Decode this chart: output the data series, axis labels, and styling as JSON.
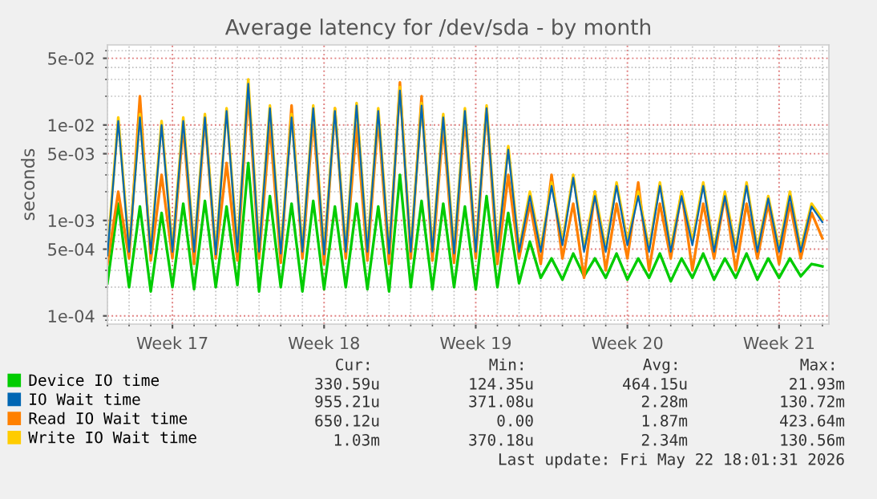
{
  "chart_data": {
    "type": "line",
    "title": "Average latency for /dev/sda - by month",
    "ylabel": "seconds",
    "categories": [
      null,
      null,
      null,
      null,
      null,
      null,
      "Week 17",
      null,
      null,
      null,
      null,
      null,
      null,
      null,
      null,
      null,
      null,
      null,
      null,
      null,
      "Week 18",
      null,
      null,
      null,
      null,
      null,
      null,
      null,
      null,
      null,
      null,
      null,
      null,
      null,
      "Week 19",
      null,
      null,
      null,
      null,
      null,
      null,
      null,
      null,
      null,
      null,
      null,
      null,
      null,
      "Week 20",
      null,
      null,
      null,
      null,
      null,
      null,
      null,
      null,
      null,
      null,
      null,
      null,
      null,
      "Week 21",
      null,
      null,
      null,
      null
    ],
    "series": [
      {
        "name": "Device IO time",
        "color": "#00cc00",
        "values": [
          0.00022,
          0.0015,
          0.0002,
          0.0014,
          0.00018,
          0.0012,
          0.0002,
          0.0015,
          0.00019,
          0.0016,
          0.0002,
          0.0014,
          0.00021,
          0.004,
          0.00018,
          0.0018,
          0.0002,
          0.0015,
          0.00018,
          0.0016,
          0.00019,
          0.0014,
          0.0002,
          0.0015,
          0.00019,
          0.0014,
          0.00018,
          0.003,
          0.0002,
          0.0016,
          0.00019,
          0.0015,
          0.0002,
          0.0014,
          0.00019,
          0.0018,
          0.0002,
          0.0012,
          0.00022,
          0.0006,
          0.00025,
          0.0004,
          0.00024,
          0.00045,
          0.00026,
          0.0004,
          0.00025,
          0.00045,
          0.00024,
          0.0004,
          0.00025,
          0.00045,
          0.00023,
          0.0004,
          0.00025,
          0.00045,
          0.00024,
          0.0004,
          0.00025,
          0.00045,
          0.00024,
          0.0004,
          0.00025,
          0.0004,
          0.00026,
          0.00035,
          0.00033
        ]
      },
      {
        "name": "IO Wait time",
        "color": "#0066b3",
        "values": [
          0.00043,
          0.011,
          0.00047,
          0.012,
          0.00045,
          0.01,
          0.00047,
          0.011,
          0.00047,
          0.012,
          0.00044,
          0.014,
          0.00047,
          0.027,
          0.00047,
          0.015,
          0.00045,
          0.012,
          0.00047,
          0.015,
          0.00044,
          0.014,
          0.00047,
          0.016,
          0.00047,
          0.014,
          0.00045,
          0.023,
          0.00047,
          0.016,
          0.00047,
          0.012,
          0.00045,
          0.014,
          0.00047,
          0.015,
          0.00047,
          0.0055,
          0.00047,
          0.0018,
          0.00047,
          0.0023,
          0.00055,
          0.0028,
          0.00047,
          0.0018,
          0.00047,
          0.0023,
          0.00055,
          0.0018,
          0.00047,
          0.0023,
          0.00047,
          0.0018,
          0.00055,
          0.0023,
          0.00047,
          0.0018,
          0.00047,
          0.0023,
          0.00047,
          0.0017,
          0.00047,
          0.0018,
          0.00047,
          0.0014,
          0.00096
        ]
      },
      {
        "name": "Read IO Wait time",
        "color": "#ff8000",
        "values": [
          0.00035,
          0.002,
          0.0004,
          0.02,
          0.00038,
          0.003,
          0.0004,
          0.01,
          0.00035,
          0.012,
          0.0004,
          0.004,
          0.00038,
          0.022,
          0.0004,
          0.01,
          0.00036,
          0.016,
          0.0004,
          0.012,
          0.00035,
          0.015,
          0.0004,
          0.01,
          0.00038,
          0.012,
          0.00035,
          0.028,
          0.0004,
          0.02,
          0.00038,
          0.01,
          0.00036,
          0.012,
          0.0004,
          0.015,
          0.00035,
          0.003,
          0.0004,
          0.0015,
          0.00035,
          0.003,
          0.0004,
          0.0015,
          0.00025,
          0.002,
          0.0003,
          0.0015,
          0.0004,
          0.0025,
          0.0003,
          0.0015,
          0.0004,
          0.002,
          0.0003,
          0.0015,
          0.0004,
          0.0018,
          0.0003,
          0.0015,
          0.0004,
          0.0015,
          0.00035,
          0.0015,
          0.0004,
          0.0012,
          0.00065
        ]
      },
      {
        "name": "Write IO Wait time",
        "color": "#ffcc00",
        "values": [
          0.00045,
          0.012,
          0.0005,
          0.013,
          0.00048,
          0.011,
          0.0005,
          0.012,
          0.0005,
          0.013,
          0.00046,
          0.015,
          0.0005,
          0.03,
          0.0005,
          0.016,
          0.00048,
          0.013,
          0.0005,
          0.016,
          0.00047,
          0.015,
          0.0005,
          0.017,
          0.0005,
          0.015,
          0.00048,
          0.025,
          0.0005,
          0.017,
          0.0005,
          0.013,
          0.00048,
          0.015,
          0.0005,
          0.016,
          0.0005,
          0.006,
          0.0005,
          0.002,
          0.0005,
          0.0025,
          0.0006,
          0.003,
          0.0005,
          0.002,
          0.0005,
          0.0025,
          0.0006,
          0.002,
          0.0005,
          0.0025,
          0.0005,
          0.002,
          0.0006,
          0.0025,
          0.0005,
          0.002,
          0.0005,
          0.0025,
          0.0005,
          0.0018,
          0.0005,
          0.002,
          0.0005,
          0.0015,
          0.00103
        ]
      }
    ],
    "log": "y",
    "ylim": [
      8.2e-05,
      0.069
    ],
    "yticks": [
      {
        "value": 0.0001,
        "label": "1e-04"
      },
      {
        "value": 0.0005,
        "label": "5e-04"
      },
      {
        "value": 0.001,
        "label": "1e-03"
      },
      {
        "value": 0.005,
        "label": "5e-03"
      },
      {
        "value": 0.01,
        "label": "1e-02"
      },
      {
        "value": 0.05,
        "label": "5e-02"
      }
    ],
    "grid": true,
    "legend": "bottom",
    "line_style": "solid",
    "marker": "none",
    "annotations": [
      "Cur:",
      "Min:",
      "Avg:",
      "Max:",
      "330.59u",
      "124.35u",
      "464.15u",
      "21.93m",
      "955.21u",
      "371.08u",
      "2.28m",
      "130.72m",
      "650.12u",
      "0.00",
      "1.87m",
      "423.64m",
      "1.03m",
      "370.18u",
      "2.34m",
      "130.56m",
      "Last update: Fri May 22 18:01:31 2026"
    ]
  }
}
